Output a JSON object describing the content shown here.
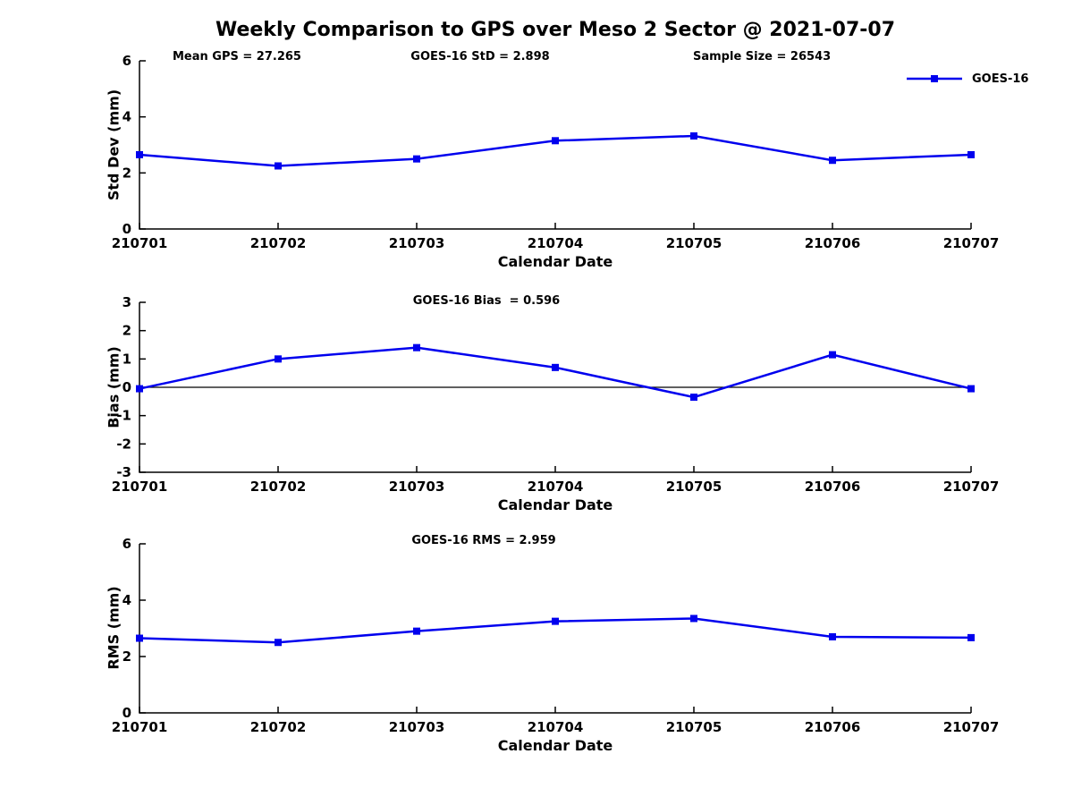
{
  "title": "Weekly Comparison to GPS over Meso 2 Sector @ 2021-07-07",
  "legend": {
    "label": "GOES-16",
    "color": "#0000EE"
  },
  "chart_data": [
    {
      "id": "stddev",
      "type": "line",
      "annotations": [
        {
          "text": "Mean GPS = 27.265"
        },
        {
          "text": "GOES-16 StD = 2.898"
        },
        {
          "text": "Sample Size = 26543"
        }
      ],
      "categories": [
        "210701",
        "210702",
        "210703",
        "210704",
        "210705",
        "210706",
        "210707"
      ],
      "series": [
        {
          "name": "GOES-16",
          "color": "#0000EE",
          "marker": "square",
          "values": [
            2.65,
            2.25,
            2.5,
            3.15,
            3.32,
            2.45,
            2.65
          ]
        }
      ],
      "xlabel": "Calendar Date",
      "ylabel": "Std Dev (mm)",
      "ylim": [
        0,
        6
      ],
      "yticks": [
        0,
        2,
        4,
        6
      ],
      "zero_line": false,
      "grid": false,
      "legend_position": "top-right-outside"
    },
    {
      "id": "bias",
      "type": "line",
      "annotations": [
        {
          "text": "GOES-16 Bias  = 0.596"
        }
      ],
      "categories": [
        "210701",
        "210702",
        "210703",
        "210704",
        "210705",
        "210706",
        "210707"
      ],
      "series": [
        {
          "name": "GOES-16",
          "color": "#0000EE",
          "marker": "square",
          "values": [
            -0.05,
            1.0,
            1.4,
            0.7,
            -0.35,
            1.15,
            -0.05
          ]
        }
      ],
      "xlabel": "Calendar Date",
      "ylabel": "Bias (mm)",
      "ylim": [
        -3,
        3
      ],
      "yticks": [
        -3,
        -2,
        -1,
        0,
        1,
        2,
        3
      ],
      "zero_line": true,
      "grid": false
    },
    {
      "id": "rms",
      "type": "line",
      "annotations": [
        {
          "text": "GOES-16 RMS = 2.959"
        }
      ],
      "categories": [
        "210701",
        "210702",
        "210703",
        "210704",
        "210705",
        "210706",
        "210707"
      ],
      "series": [
        {
          "name": "GOES-16",
          "color": "#0000EE",
          "marker": "square",
          "values": [
            2.65,
            2.5,
            2.9,
            3.25,
            3.35,
            2.7,
            2.67
          ]
        }
      ],
      "xlabel": "Calendar Date",
      "ylabel": "RMS (mm)",
      "ylim": [
        0,
        6
      ],
      "yticks": [
        0,
        2,
        4,
        6
      ],
      "zero_line": false,
      "grid": false
    }
  ]
}
